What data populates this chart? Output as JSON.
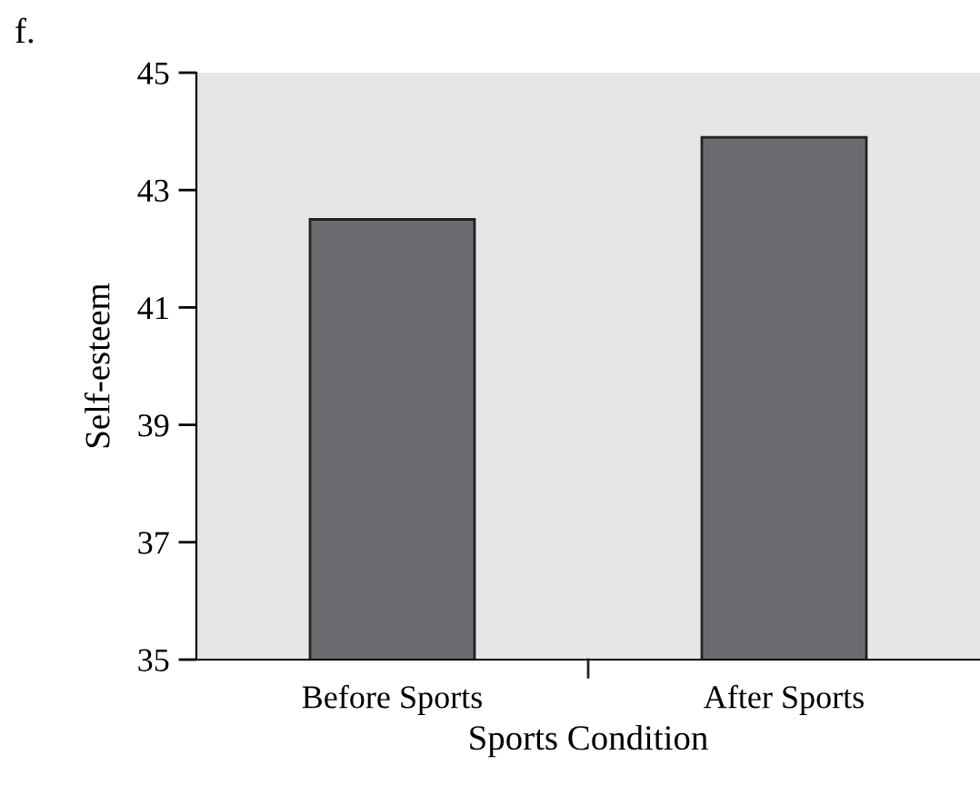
{
  "chart_data": {
    "type": "bar",
    "xlabel": "Sports Condition",
    "ylabel": "Self-esteem",
    "annotations": [
      "f."
    ],
    "categories": [
      "Before Sports",
      "After Sports"
    ],
    "values": [
      42.5,
      43.9
    ],
    "color": "#6b6b6f",
    "ylim": [
      35,
      45
    ],
    "yticks": [
      35,
      37,
      39,
      41,
      43,
      45
    ],
    "grid": false,
    "legend": false
  }
}
